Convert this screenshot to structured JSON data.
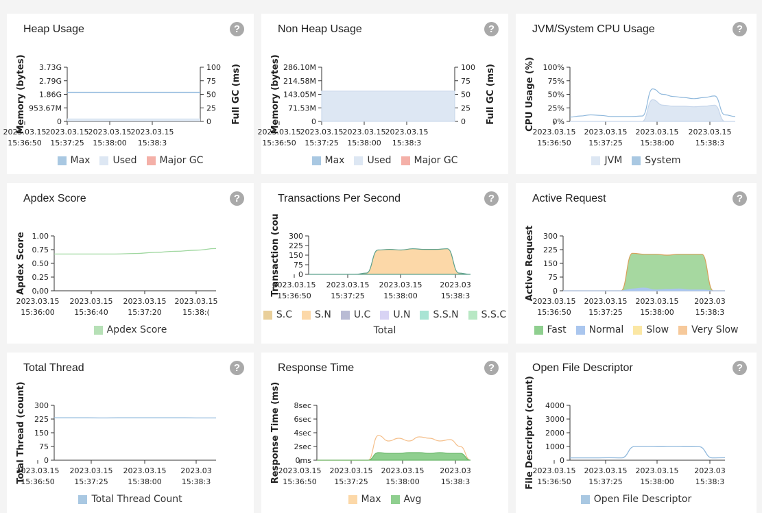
{
  "help_glyph": "?",
  "panels": {
    "heap": {
      "title": "Heap Usage",
      "y_label": "Memory (bytes)",
      "y2_label": "Full GC (ms)",
      "y_ticks": [
        "3.73G",
        "2.79G",
        "1.86G",
        "953.67M",
        "0"
      ],
      "y2_ticks": [
        "100",
        "75",
        "50",
        "25",
        "0"
      ],
      "x_ticks": [
        [
          "2023.03.15",
          "15:36:50"
        ],
        [
          "2023.03.15",
          "15:37:25"
        ],
        [
          "2023.03.15",
          "15:38:00"
        ],
        [
          "2023.03.15",
          "15:38:3"
        ]
      ],
      "legend": [
        {
          "label": "Max",
          "color": "#a9c8e2"
        },
        {
          "label": "Used",
          "color": "#dde7f3"
        },
        {
          "label": "Major GC",
          "color": "#f4b0a8"
        }
      ],
      "chart_data": {
        "type": "area",
        "series": [
          {
            "name": "Max",
            "level": 2.0,
            "unit": "G"
          },
          {
            "name": "Used",
            "approx": 0.2,
            "unit": "G"
          }
        ],
        "ylim": [
          0,
          3.73
        ],
        "y2lim": [
          0,
          100
        ]
      }
    },
    "nonheap": {
      "title": "Non Heap Usage",
      "y_label": "Memory (bytes)",
      "y2_label": "Full GC (ms)",
      "y_ticks": [
        "286.10M",
        "214.58M",
        "143.05M",
        "71.53M",
        "0"
      ],
      "y2_ticks": [
        "100",
        "75",
        "50",
        "25",
        "0"
      ],
      "x_ticks": [
        [
          "2023.03.15",
          "15:36:50"
        ],
        [
          "2023.03.15",
          "15:37:25"
        ],
        [
          "2023.03.15",
          "15:38:00"
        ],
        [
          "2023.03.15",
          "15:38:3"
        ]
      ],
      "legend": [
        {
          "label": "Max",
          "color": "#a9c8e2"
        },
        {
          "label": "Used",
          "color": "#dde7f3"
        },
        {
          "label": "Major GC",
          "color": "#f4b0a8"
        }
      ],
      "chart_data": {
        "type": "area",
        "series": [
          {
            "name": "Used",
            "level": 160,
            "unit": "M"
          }
        ],
        "ylim": [
          0,
          286.1
        ]
      }
    },
    "cpu": {
      "title": "JVM/System CPU Usage",
      "y_label": "CPU Usage (%)",
      "y_ticks": [
        "100%",
        "75%",
        "50%",
        "25%",
        "0%"
      ],
      "x_ticks": [
        [
          "2023.03.15",
          "15:36:50"
        ],
        [
          "2023.03.15",
          "15:37:25"
        ],
        [
          "2023.03.15",
          "15:38:00"
        ],
        [
          "2023.03.15",
          "15:38:3"
        ]
      ],
      "legend": [
        {
          "label": "JVM",
          "color": "#dde7f3"
        },
        {
          "label": "System",
          "color": "#a9c8e2"
        }
      ],
      "chart_data": {
        "type": "area",
        "ylim": [
          0,
          100
        ],
        "series": [
          {
            "name": "System",
            "values": [
              8,
              10,
              12,
              11,
              9,
              9,
              9,
              10,
              60,
              50,
              46,
              44,
              42,
              44,
              47,
              12,
              9
            ]
          },
          {
            "name": "JVM",
            "values": [
              0,
              0,
              0,
              0,
              0,
              0,
              0,
              0,
              40,
              30,
              28,
              28,
              27,
              28,
              30,
              0,
              0
            ]
          }
        ]
      }
    },
    "apdex": {
      "title": "Apdex Score",
      "y_label": "Apdex Score",
      "y_ticks": [
        "1.00",
        "0.75",
        "0.50",
        "0.25",
        "0.00"
      ],
      "x_ticks": [
        [
          "2023.03.15",
          "15:36:00"
        ],
        [
          "2023.03.15",
          "15:36:40"
        ],
        [
          "2023.03.15",
          "15:37:20"
        ],
        [
          "2023.03.15",
          "15:38:("
        ]
      ],
      "legend": [
        {
          "label": "Apdex Score",
          "color": "#b6e0b6"
        }
      ],
      "chart_data": {
        "type": "line",
        "ylim": [
          0,
          1
        ],
        "series": [
          {
            "name": "Apdex Score",
            "values": [
              0.67,
              0.67,
              0.67,
              0.67,
              0.68,
              0.7,
              0.72,
              0.74,
              0.77
            ]
          }
        ]
      }
    },
    "tps": {
      "title": "Transactions Per Second",
      "y_label": "Transaction (cou",
      "y_ticks": [
        "300",
        "225",
        "150",
        "75",
        "0"
      ],
      "x_ticks": [
        [
          "2023.03.15",
          "15:36:50"
        ],
        [
          "2023.03.15",
          "15:37:25"
        ],
        [
          "2023.03.15",
          "15:38:00"
        ],
        [
          "2023.03",
          " 15:38:3"
        ]
      ],
      "legend": [
        {
          "label": "S.C",
          "color": "#e9cf9a"
        },
        {
          "label": "S.N",
          "color": "#fcd8a8"
        },
        {
          "label": "U.C",
          "color": "#b9bbd4"
        },
        {
          "label": "U.N",
          "color": "#d8d3f4"
        },
        {
          "label": "S.S.N",
          "color": "#a9e4d4"
        },
        {
          "label": "S.S.C",
          "color": "#b8e8c4"
        }
      ],
      "legend_total": "Total",
      "chart_data": {
        "type": "area",
        "ylim": [
          0,
          300
        ],
        "series": [
          {
            "name": "Total",
            "values": [
              0,
              0,
              0,
              0,
              0,
              10,
              190,
              195,
              190,
              200,
              195,
              195,
              200,
              10,
              0
            ]
          }
        ]
      }
    },
    "active": {
      "title": "Active Request",
      "y_label": "Active Request",
      "y_ticks": [
        "300",
        "225",
        "150",
        "75",
        "0"
      ],
      "x_ticks": [
        [
          "2023.03.15",
          "15:36:50"
        ],
        [
          "2023.03.15",
          "15:37:25"
        ],
        [
          "2023.03.15",
          "15:38:00"
        ],
        [
          "2023.03",
          "15:38:3"
        ]
      ],
      "legend": [
        {
          "label": "Fast",
          "color": "#8fcf8f"
        },
        {
          "label": "Normal",
          "color": "#aac6ee"
        },
        {
          "label": "Slow",
          "color": "#fbe7a4"
        },
        {
          "label": "Very Slow",
          "color": "#f6c99b"
        }
      ],
      "chart_data": {
        "type": "area",
        "ylim": [
          0,
          300
        ],
        "series": [
          {
            "name": "Fast",
            "values": [
              0,
              0,
              0,
              0,
              0,
              0,
              205,
              200,
              200,
              195,
              200,
              200,
              200,
              0,
              0
            ]
          },
          {
            "name": "Normal",
            "values": [
              0,
              0,
              0,
              0,
              0,
              0,
              10,
              15,
              5,
              8,
              10,
              5,
              5,
              0,
              0
            ]
          }
        ]
      }
    },
    "thread": {
      "title": "Total Thread",
      "y_label": "Total Thread (count)",
      "y_ticks": [
        "300",
        "225",
        "150",
        "75",
        "0"
      ],
      "x_ticks": [
        [
          "2023.03.15",
          "15:36:50"
        ],
        [
          "2023.03.15",
          "15:37:25"
        ],
        [
          "2023.03.15",
          "15:38:00"
        ],
        [
          "2023.03",
          "15:38:3"
        ]
      ],
      "legend": [
        {
          "label": "Total Thread Count",
          "color": "#a9c8e2"
        }
      ],
      "chart_data": {
        "type": "line",
        "ylim": [
          0,
          300
        ],
        "series": [
          {
            "name": "Total Thread Count",
            "values": [
              232,
              232,
              232,
              231,
              232,
              232,
              232,
              232,
              232,
              231,
              231
            ]
          }
        ]
      }
    },
    "resp": {
      "title": "Response Time",
      "y_label": "Response Time (ms)",
      "y_ticks": [
        "8sec",
        "6sec",
        "4sec",
        "2sec",
        "0ms"
      ],
      "x_ticks": [
        [
          "2023.03.15",
          "15:36:50"
        ],
        [
          "2023.03.15",
          "15:37:25"
        ],
        [
          "2023.03.15",
          "15:38:00"
        ],
        [
          "2023.03",
          "15:38:3"
        ]
      ],
      "legend": [
        {
          "label": "Max",
          "color": "#fcd8a8"
        },
        {
          "label": "Avg",
          "color": "#8fcf8f"
        }
      ],
      "chart_data": {
        "type": "area",
        "ylim": [
          0,
          8
        ],
        "series": [
          {
            "name": "Max",
            "values": [
              0,
              0,
              0,
              0,
              0,
              0,
              3.6,
              2.8,
              3.2,
              2.8,
              3.4,
              3.2,
              2.8,
              3.0,
              2.0,
              0
            ]
          },
          {
            "name": "Avg",
            "values": [
              0,
              0,
              0,
              0,
              0,
              0,
              1.1,
              1.0,
              1.0,
              1.1,
              1.1,
              1.0,
              1.1,
              1.0,
              1.0,
              0
            ]
          }
        ]
      }
    },
    "fd": {
      "title": "Open File Descriptor",
      "y_label": "File Descriptor (count)",
      "y_ticks": [
        "4000",
        "3000",
        "2000",
        "1000",
        "0"
      ],
      "x_ticks": [
        [
          "2023.03.15",
          "15:36:50"
        ],
        [
          "2023.03.15",
          "15:37:25"
        ],
        [
          "2023.03.15",
          "15:38:00"
        ],
        [
          "2023.03",
          "15:38:3"
        ]
      ],
      "legend": [
        {
          "label": "Open File Descriptor",
          "color": "#a9c8e2"
        }
      ],
      "chart_data": {
        "type": "line",
        "ylim": [
          0,
          4000
        ],
        "series": [
          {
            "name": "Open File Descriptor",
            "values": [
              170,
              170,
              170,
              180,
              170,
              1000,
              1000,
              990,
              1000,
              990,
              980,
              170,
              180
            ]
          }
        ]
      }
    }
  }
}
